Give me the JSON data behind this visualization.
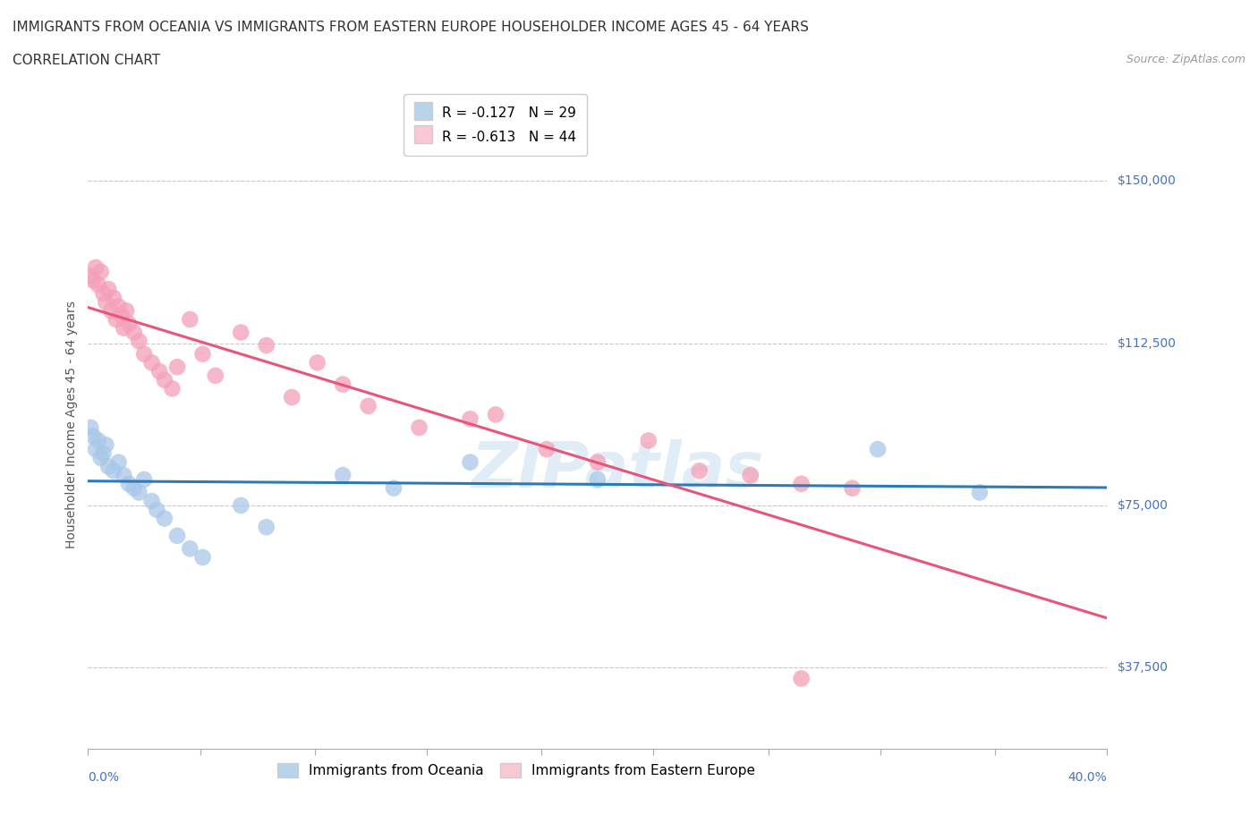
{
  "title_line1": "IMMIGRANTS FROM OCEANIA VS IMMIGRANTS FROM EASTERN EUROPE HOUSEHOLDER INCOME AGES 45 - 64 YEARS",
  "title_line2": "CORRELATION CHART",
  "source_text": "Source: ZipAtlas.com",
  "ylabel": "Householder Income Ages 45 - 64 years",
  "xlim": [
    0.0,
    0.4
  ],
  "ylim": [
    18750,
    168750
  ],
  "yticks": [
    37500,
    75000,
    112500,
    150000
  ],
  "ytick_labels": [
    "$37,500",
    "$75,000",
    "$112,500",
    "$150,000"
  ],
  "xticks": [
    0.0,
    0.044,
    0.089,
    0.133,
    0.178,
    0.222,
    0.267,
    0.311,
    0.356,
    0.4
  ],
  "grid_color": "#c8c8c8",
  "background_color": "#ffffff",
  "watermark": "ZIPatlas",
  "series": [
    {
      "name": "Immigrants from Oceania",
      "color": "#a8c8e8",
      "line_color": "#2c7bb6",
      "R": -0.127,
      "N": 29,
      "x": [
        0.001,
        0.002,
        0.003,
        0.004,
        0.005,
        0.006,
        0.007,
        0.008,
        0.01,
        0.012,
        0.014,
        0.016,
        0.018,
        0.02,
        0.022,
        0.025,
        0.027,
        0.03,
        0.035,
        0.04,
        0.045,
        0.06,
        0.07,
        0.1,
        0.12,
        0.15,
        0.2,
        0.31,
        0.35
      ],
      "y": [
        93000,
        91000,
        88000,
        90000,
        86000,
        87000,
        89000,
        84000,
        83000,
        85000,
        82000,
        80000,
        79000,
        78000,
        81000,
        76000,
        74000,
        72000,
        68000,
        65000,
        63000,
        75000,
        70000,
        82000,
        79000,
        85000,
        81000,
        88000,
        78000
      ]
    },
    {
      "name": "Immigrants from Eastern Europe",
      "color": "#f4a0b8",
      "line_color": "#e8547a",
      "R": -0.613,
      "N": 44,
      "x": [
        0.001,
        0.002,
        0.003,
        0.004,
        0.005,
        0.006,
        0.007,
        0.008,
        0.009,
        0.01,
        0.011,
        0.012,
        0.013,
        0.014,
        0.015,
        0.016,
        0.018,
        0.02,
        0.022,
        0.025,
        0.028,
        0.03,
        0.033,
        0.035,
        0.04,
        0.045,
        0.05,
        0.06,
        0.07,
        0.08,
        0.09,
        0.1,
        0.11,
        0.13,
        0.15,
        0.16,
        0.18,
        0.2,
        0.22,
        0.24,
        0.26,
        0.28,
        0.3,
        0.28
      ],
      "y": [
        128000,
        127000,
        130000,
        126000,
        129000,
        124000,
        122000,
        125000,
        120000,
        123000,
        118000,
        121000,
        119000,
        116000,
        120000,
        117000,
        115000,
        113000,
        110000,
        108000,
        106000,
        104000,
        102000,
        107000,
        118000,
        110000,
        105000,
        115000,
        112000,
        100000,
        108000,
        103000,
        98000,
        93000,
        95000,
        96000,
        88000,
        85000,
        90000,
        83000,
        82000,
        80000,
        79000,
        35000
      ]
    }
  ],
  "legend_box_colors": [
    "#b8d4ea",
    "#f8c8d4"
  ],
  "title_fontsize": 11,
  "subtitle_fontsize": 11,
  "tick_fontsize": 10,
  "legend_fontsize": 11,
  "ylabel_fontsize": 10,
  "source_fontsize": 9
}
